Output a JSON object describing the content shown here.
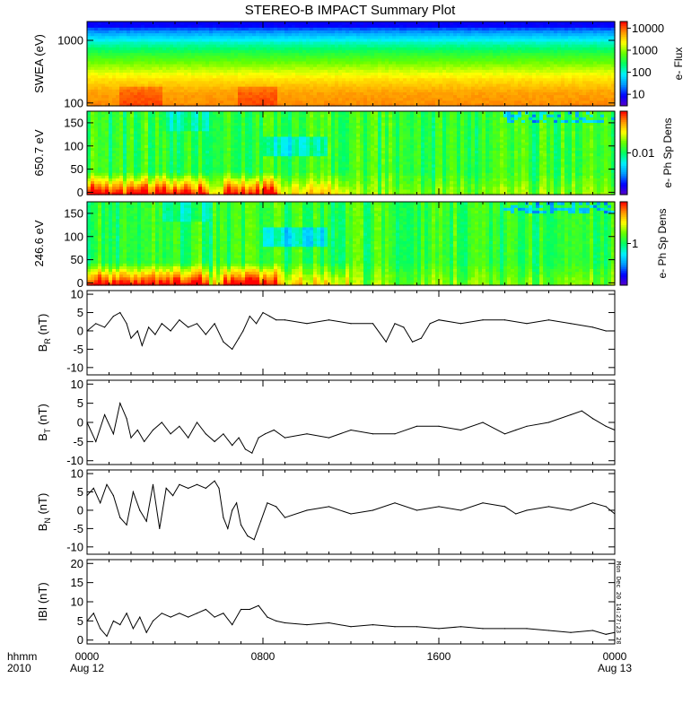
{
  "title": "STEREO-B IMPACT Summary Plot",
  "timestamp": "Mon Dec 20 14:27:23 2010",
  "x_axis": {
    "row_label_1": "hhmm",
    "row_label_2": "2010",
    "ticks": [
      {
        "hour": 0,
        "time": "0000",
        "date": "Aug 12"
      },
      {
        "hour": 8,
        "time": "0800",
        "date": ""
      },
      {
        "hour": 16,
        "time": "1600",
        "date": ""
      },
      {
        "hour": 24,
        "time": "0000",
        "date": "Aug 13"
      }
    ]
  },
  "colors": {
    "axis": "#000000",
    "line": "#000000",
    "colormap": [
      "#5a00c8",
      "#0000ff",
      "#0096ff",
      "#00f0ff",
      "#00ff64",
      "#64ff00",
      "#ffff00",
      "#ff9600",
      "#ff0000"
    ]
  },
  "chart_data": [
    {
      "id": "swea",
      "type": "heatmap",
      "ylabel": "SWEA (eV)",
      "yscale": "log",
      "ylim": [
        90,
        2000
      ],
      "yticks": [
        {
          "v": 100,
          "label": "100"
        },
        {
          "v": 1000,
          "label": "1000"
        }
      ],
      "colorbar": {
        "label": "e- Flux",
        "scale": "log",
        "range": [
          3,
          20000
        ],
        "ticks": [
          {
            "v": 10,
            "label": "10"
          },
          {
            "v": 100,
            "label": "100"
          },
          {
            "v": 1000,
            "label": "1000"
          },
          {
            "v": 10000,
            "label": "10000"
          }
        ]
      },
      "description_profile": [
        {
          "energy": 100,
          "level": 0.88
        },
        {
          "energy": 150,
          "level": 0.86
        },
        {
          "energy": 250,
          "level": 0.78
        },
        {
          "energy": 400,
          "level": 0.66
        },
        {
          "energy": 600,
          "level": 0.56
        },
        {
          "energy": 900,
          "level": 0.44
        },
        {
          "energy": 1300,
          "level": 0.28
        },
        {
          "energy": 1800,
          "level": 0.12
        }
      ]
    },
    {
      "id": "pad650",
      "type": "heatmap",
      "ylabel": "650.7 eV",
      "ylim": [
        -5,
        175
      ],
      "yticks": [
        {
          "v": 0,
          "label": "0"
        },
        {
          "v": 50,
          "label": "50"
        },
        {
          "v": 100,
          "label": "100"
        },
        {
          "v": 150,
          "label": "150"
        }
      ],
      "colorbar": {
        "label": "e- Ph Sp Dens",
        "scale": "log",
        "range": [
          0.0005,
          0.2
        ],
        "ticks": [
          {
            "v": 0.01,
            "label": "0.01"
          }
        ]
      }
    },
    {
      "id": "pad246",
      "type": "heatmap",
      "ylabel": "246.6 eV",
      "ylim": [
        -5,
        175
      ],
      "yticks": [
        {
          "v": 0,
          "label": "0"
        },
        {
          "v": 50,
          "label": "50"
        },
        {
          "v": 100,
          "label": "100"
        },
        {
          "v": 150,
          "label": "150"
        }
      ],
      "colorbar": {
        "label": "e- Ph Sp Dens",
        "scale": "log",
        "range": [
          0.05,
          20
        ],
        "ticks": [
          {
            "v": 1,
            "label": "1"
          }
        ]
      }
    },
    {
      "id": "br",
      "type": "line",
      "ylabel_main": "B",
      "ylabel_sub": "R",
      "ylabel_unit": " (nT)",
      "ylim": [
        -12,
        11
      ],
      "yticks": [
        {
          "v": -10,
          "label": "-10"
        },
        {
          "v": -5,
          "label": "-5"
        },
        {
          "v": 0,
          "label": "0"
        },
        {
          "v": 5,
          "label": "5"
        },
        {
          "v": 10,
          "label": "10"
        }
      ],
      "x": [
        0,
        0.4,
        0.8,
        1.2,
        1.5,
        1.8,
        2.0,
        2.3,
        2.5,
        2.8,
        3.1,
        3.4,
        3.8,
        4.2,
        4.6,
        5.0,
        5.4,
        5.8,
        6.2,
        6.6,
        6.9,
        7.1,
        7.4,
        7.7,
        8.0,
        8.3,
        8.6,
        9.0,
        10,
        11,
        12,
        13,
        13.6,
        14.0,
        14.4,
        14.8,
        15.2,
        15.6,
        16,
        17,
        18,
        19,
        20,
        21,
        22,
        23,
        23.6,
        24
      ],
      "y": [
        0,
        2,
        1,
        4,
        5,
        2,
        -2,
        0,
        -4,
        1,
        -1,
        2,
        0,
        3,
        1,
        2,
        -1,
        2,
        -3,
        -5,
        -2,
        0,
        4,
        2,
        5,
        4,
        3,
        3,
        2,
        3,
        2,
        2,
        -3,
        2,
        1,
        -3,
        -2,
        2,
        3,
        2,
        3,
        3,
        2,
        3,
        2,
        1,
        0,
        0
      ]
    },
    {
      "id": "bt",
      "type": "line",
      "ylabel_main": "B",
      "ylabel_sub": "T",
      "ylabel_unit": " (nT)",
      "ylim": [
        -11,
        11
      ],
      "yticks": [
        {
          "v": -10,
          "label": "-10"
        },
        {
          "v": -5,
          "label": "-5"
        },
        {
          "v": 0,
          "label": "0"
        },
        {
          "v": 5,
          "label": "5"
        },
        {
          "v": 10,
          "label": "10"
        }
      ],
      "x": [
        0,
        0.4,
        0.8,
        1.2,
        1.5,
        1.8,
        2.0,
        2.3,
        2.6,
        3.0,
        3.4,
        3.8,
        4.2,
        4.6,
        5.0,
        5.4,
        5.8,
        6.2,
        6.6,
        6.9,
        7.2,
        7.5,
        7.8,
        8.1,
        8.5,
        9.0,
        10,
        11,
        12,
        13,
        14,
        15,
        16,
        17,
        18,
        19,
        19.5,
        20,
        21,
        22,
        22.5,
        23,
        23.6,
        24
      ],
      "y": [
        0,
        -5,
        2,
        -3,
        5,
        1,
        -4,
        -2,
        -5,
        -2,
        0,
        -3,
        -1,
        -4,
        0,
        -3,
        -5,
        -3,
        -6,
        -4,
        -7,
        -8,
        -4,
        -3,
        -2,
        -4,
        -3,
        -4,
        -2,
        -3,
        -3,
        -1,
        -1,
        -2,
        0,
        -3,
        -2,
        -1,
        0,
        2,
        3,
        1,
        -1,
        -2
      ]
    },
    {
      "id": "bn",
      "type": "line",
      "ylabel_main": "B",
      "ylabel_sub": "N",
      "ylabel_unit": " (nT)",
      "ylim": [
        -12,
        11
      ],
      "yticks": [
        {
          "v": -10,
          "label": "-10"
        },
        {
          "v": -5,
          "label": "-5"
        },
        {
          "v": 0,
          "label": "0"
        },
        {
          "v": 5,
          "label": "5"
        },
        {
          "v": 10,
          "label": "10"
        }
      ],
      "x": [
        0,
        0.3,
        0.6,
        0.9,
        1.2,
        1.5,
        1.8,
        2.1,
        2.4,
        2.7,
        3.0,
        3.3,
        3.6,
        3.9,
        4.2,
        4.6,
        5.0,
        5.4,
        5.8,
        6.0,
        6.2,
        6.4,
        6.6,
        6.8,
        7.0,
        7.3,
        7.6,
        7.9,
        8.2,
        8.6,
        9.0,
        10,
        11,
        12,
        13,
        14,
        15,
        16,
        17,
        18,
        19,
        19.5,
        20,
        21,
        22,
        23,
        23.6,
        24
      ],
      "y": [
        4,
        6,
        2,
        7,
        4,
        -2,
        -4,
        5,
        0,
        -3,
        7,
        -5,
        6,
        4,
        7,
        6,
        7,
        6,
        8,
        6,
        -2,
        -5,
        0,
        2,
        -4,
        -7,
        -8,
        -3,
        2,
        1,
        -2,
        0,
        1,
        -1,
        0,
        2,
        0,
        1,
        0,
        2,
        1,
        -1,
        0,
        1,
        0,
        2,
        1,
        -1
      ]
    },
    {
      "id": "bmag",
      "type": "line",
      "ylabel_main": "IBI (nT)",
      "ylabel_sub": "",
      "ylabel_unit": "",
      "ylim": [
        -1,
        21
      ],
      "yticks": [
        {
          "v": 0,
          "label": "0"
        },
        {
          "v": 5,
          "label": "5"
        },
        {
          "v": 10,
          "label": "10"
        },
        {
          "v": 15,
          "label": "15"
        },
        {
          "v": 20,
          "label": "20"
        }
      ],
      "x": [
        0,
        0.3,
        0.6,
        0.9,
        1.2,
        1.5,
        1.8,
        2.1,
        2.4,
        2.7,
        3.0,
        3.4,
        3.8,
        4.2,
        4.6,
        5.0,
        5.4,
        5.8,
        6.2,
        6.6,
        7.0,
        7.4,
        7.8,
        8.2,
        8.6,
        9.0,
        10,
        11,
        12,
        13,
        14,
        15,
        16,
        17,
        18,
        19,
        20,
        21,
        22,
        23,
        23.6,
        24
      ],
      "y": [
        5,
        7,
        3,
        1,
        5,
        4,
        7,
        3,
        6,
        2,
        5,
        7,
        6,
        7,
        6,
        7,
        8,
        6,
        7,
        4,
        8,
        8,
        9,
        6,
        5,
        4.5,
        4,
        4.5,
        3.5,
        4,
        3.5,
        3.5,
        3,
        3.5,
        3,
        3,
        3,
        2.5,
        2,
        2.5,
        1.5,
        2
      ]
    }
  ]
}
